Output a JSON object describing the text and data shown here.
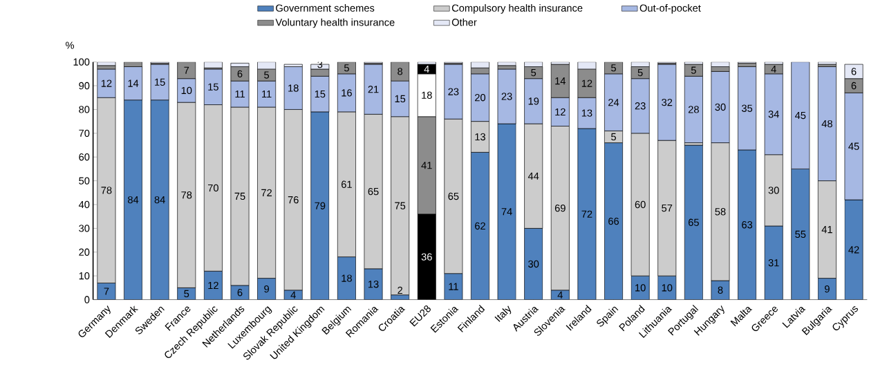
{
  "chart_data": {
    "type": "bar",
    "stacked": true,
    "ylabel": "%",
    "ylim": [
      0,
      100
    ],
    "yticks": [
      0,
      10,
      20,
      30,
      40,
      50,
      60,
      70,
      80,
      90,
      100
    ],
    "grid": false,
    "legend": "top",
    "categories": [
      "Germany",
      "Denmark",
      "Sweden",
      "France",
      "Czech Republic",
      "Netherlands",
      "Luxembourg",
      "Slovak Republic",
      "United Kingdom",
      "Belgium",
      "Romania",
      "Croatia",
      "EU28",
      "Estonia",
      "Finland",
      "Italy",
      "Austria",
      "Slovenia",
      "Ireland",
      "Spain",
      "Poland",
      "Lithuania",
      "Portugal",
      "Hungary",
      "Malta",
      "Greece",
      "Latvia",
      "Bulgaria",
      "Cyprus"
    ],
    "series": [
      {
        "name": "Government schemes",
        "color": "#4f81bd",
        "colors": [
          "#4f81bd",
          "#4f81bd",
          "#4f81bd",
          "#4f81bd",
          "#4f81bd",
          "#4f81bd",
          "#4f81bd",
          "#4f81bd",
          "#4f81bd",
          "#4f81bd",
          "#4f81bd",
          "#4f81bd",
          "#000000",
          "#4f81bd",
          "#4f81bd",
          "#4f81bd",
          "#4f81bd",
          "#4f81bd",
          "#4f81bd",
          "#4f81bd",
          "#4f81bd",
          "#4f81bd",
          "#4f81bd",
          "#4f81bd",
          "#4f81bd",
          "#4f81bd",
          "#4f81bd",
          "#4f81bd",
          "#4f81bd"
        ],
        "values": [
          7,
          84,
          84,
          5,
          12,
          6,
          9,
          4,
          79,
          18,
          13,
          2,
          36,
          11,
          62,
          74,
          30,
          4,
          72,
          66,
          10,
          10,
          65,
          8,
          63,
          31,
          55,
          9,
          42
        ],
        "value_labels": [
          "7",
          "84",
          "84",
          "5",
          "12",
          "6",
          "9",
          "4",
          "79",
          "18",
          "13",
          "2",
          "36",
          "11",
          "62",
          "74",
          "30",
          "4",
          "72",
          "66",
          "10",
          "10",
          "65",
          "8",
          "63",
          "31",
          "55",
          "9",
          "42"
        ]
      },
      {
        "name": "Compulsory health insurance",
        "color": "#cccccc",
        "colors": [
          "#cccccc",
          "#cccccc",
          "#cccccc",
          "#cccccc",
          "#cccccc",
          "#cccccc",
          "#cccccc",
          "#cccccc",
          "#cccccc",
          "#cccccc",
          "#cccccc",
          "#cccccc",
          "#8c8c8c",
          "#cccccc",
          "#cccccc",
          "#cccccc",
          "#cccccc",
          "#cccccc",
          "#cccccc",
          "#cccccc",
          "#cccccc",
          "#cccccc",
          "#cccccc",
          "#cccccc",
          "#cccccc",
          "#cccccc",
          "#cccccc",
          "#cccccc",
          "#cccccc"
        ],
        "values": [
          78,
          0,
          0,
          78,
          70,
          75,
          72,
          76,
          0,
          61,
          65,
          75,
          41,
          65,
          13,
          0,
          44,
          69,
          0,
          5,
          60,
          57,
          1,
          58,
          0,
          30,
          0,
          41,
          0
        ],
        "value_labels": [
          "78",
          null,
          null,
          "78",
          "70",
          "75",
          "72",
          "76",
          null,
          "61",
          "65",
          "75",
          "41",
          "65",
          "13",
          null,
          "44",
          "69",
          null,
          "5",
          "60",
          "57",
          null,
          "58",
          null,
          "30",
          null,
          "41",
          null
        ]
      },
      {
        "name": "Out-of-pocket",
        "color": "#a6b8e3",
        "colors": [
          "#a6b8e3",
          "#a6b8e3",
          "#a6b8e3",
          "#a6b8e3",
          "#a6b8e3",
          "#a6b8e3",
          "#a6b8e3",
          "#a6b8e3",
          "#a6b8e3",
          "#a6b8e3",
          "#a6b8e3",
          "#a6b8e3",
          "#ffffff",
          "#a6b8e3",
          "#a6b8e3",
          "#a6b8e3",
          "#a6b8e3",
          "#a6b8e3",
          "#a6b8e3",
          "#a6b8e3",
          "#a6b8e3",
          "#a6b8e3",
          "#a6b8e3",
          "#a6b8e3",
          "#a6b8e3",
          "#a6b8e3",
          "#a6b8e3",
          "#a6b8e3",
          "#a6b8e3"
        ],
        "values": [
          12,
          14,
          15,
          10,
          15,
          11,
          11,
          18,
          15,
          16,
          21,
          15,
          18,
          23,
          20,
          23,
          19,
          12,
          13,
          24,
          23,
          32,
          28,
          30,
          35,
          34,
          45,
          48,
          45
        ],
        "value_labels": [
          "12",
          "14",
          "15",
          "10",
          "15",
          "11",
          "11",
          "18",
          "15",
          "16",
          "21",
          "15",
          "18",
          "23",
          "20",
          "23",
          "19",
          "12",
          "13",
          "24",
          "23",
          "32",
          "28",
          "30",
          "35",
          "34",
          "45",
          "48",
          "45"
        ]
      },
      {
        "name": "Voluntary health insurance",
        "color": "#8c8c8c",
        "colors": [
          "#8c8c8c",
          "#8c8c8c",
          "#8c8c8c",
          "#8c8c8c",
          "#8c8c8c",
          "#8c8c8c",
          "#8c8c8c",
          "#8c8c8c",
          "#8c8c8c",
          "#8c8c8c",
          "#8c8c8c",
          "#8c8c8c",
          "#000000",
          "#8c8c8c",
          "#8c8c8c",
          "#8c8c8c",
          "#8c8c8c",
          "#8c8c8c",
          "#8c8c8c",
          "#8c8c8c",
          "#8c8c8c",
          "#8c8c8c",
          "#8c8c8c",
          "#8c8c8c",
          "#8c8c8c",
          "#8c8c8c",
          "#8c8c8c",
          "#8c8c8c",
          "#8c8c8c"
        ],
        "values": [
          1.5,
          2,
          0.5,
          7,
          0.5,
          6,
          5,
          0,
          3,
          5,
          0.5,
          8,
          4,
          0.5,
          2.5,
          1.5,
          5,
          14,
          12,
          5,
          5,
          0.5,
          5,
          2,
          1.5,
          4,
          0,
          1,
          6
        ],
        "value_labels": [
          null,
          null,
          null,
          "7",
          null,
          "6",
          "5",
          null,
          "3",
          "5",
          null,
          "8",
          "4",
          null,
          null,
          null,
          "5",
          "14",
          "12",
          "5",
          "5",
          null,
          "5",
          null,
          null,
          "4",
          null,
          null,
          "6"
        ]
      },
      {
        "name": "Other",
        "color": "#e4e8f6",
        "colors": [
          "#e4e8f6",
          "#e4e8f6",
          "#e4e8f6",
          "#e4e8f6",
          "#e4e8f6",
          "#e4e8f6",
          "#e4e8f6",
          "#e4e8f6",
          "#e4e8f6",
          "#e4e8f6",
          "#e4e8f6",
          "#e4e8f6",
          "#e4e8f6",
          "#e4e8f6",
          "#e4e8f6",
          "#e4e8f6",
          "#e4e8f6",
          "#e4e8f6",
          "#e4e8f6",
          "#e4e8f6",
          "#e4e8f6",
          "#e4e8f6",
          "#e4e8f6",
          "#e4e8f6",
          "#e4e8f6",
          "#e4e8f6",
          "#e4e8f6",
          "#e4e8f6",
          "#e4e8f6"
        ],
        "values": [
          1.5,
          0,
          0.5,
          0,
          2.5,
          1.5,
          3,
          1,
          2,
          0,
          0.5,
          0,
          1,
          0.5,
          2.5,
          1.5,
          2,
          1,
          3,
          0,
          2,
          0.5,
          1,
          2,
          0.5,
          1,
          0,
          1,
          6
        ],
        "value_labels": [
          null,
          null,
          null,
          null,
          null,
          null,
          null,
          null,
          null,
          null,
          null,
          null,
          null,
          null,
          null,
          null,
          null,
          null,
          null,
          null,
          null,
          null,
          null,
          null,
          null,
          null,
          null,
          null,
          "6"
        ]
      }
    ]
  }
}
